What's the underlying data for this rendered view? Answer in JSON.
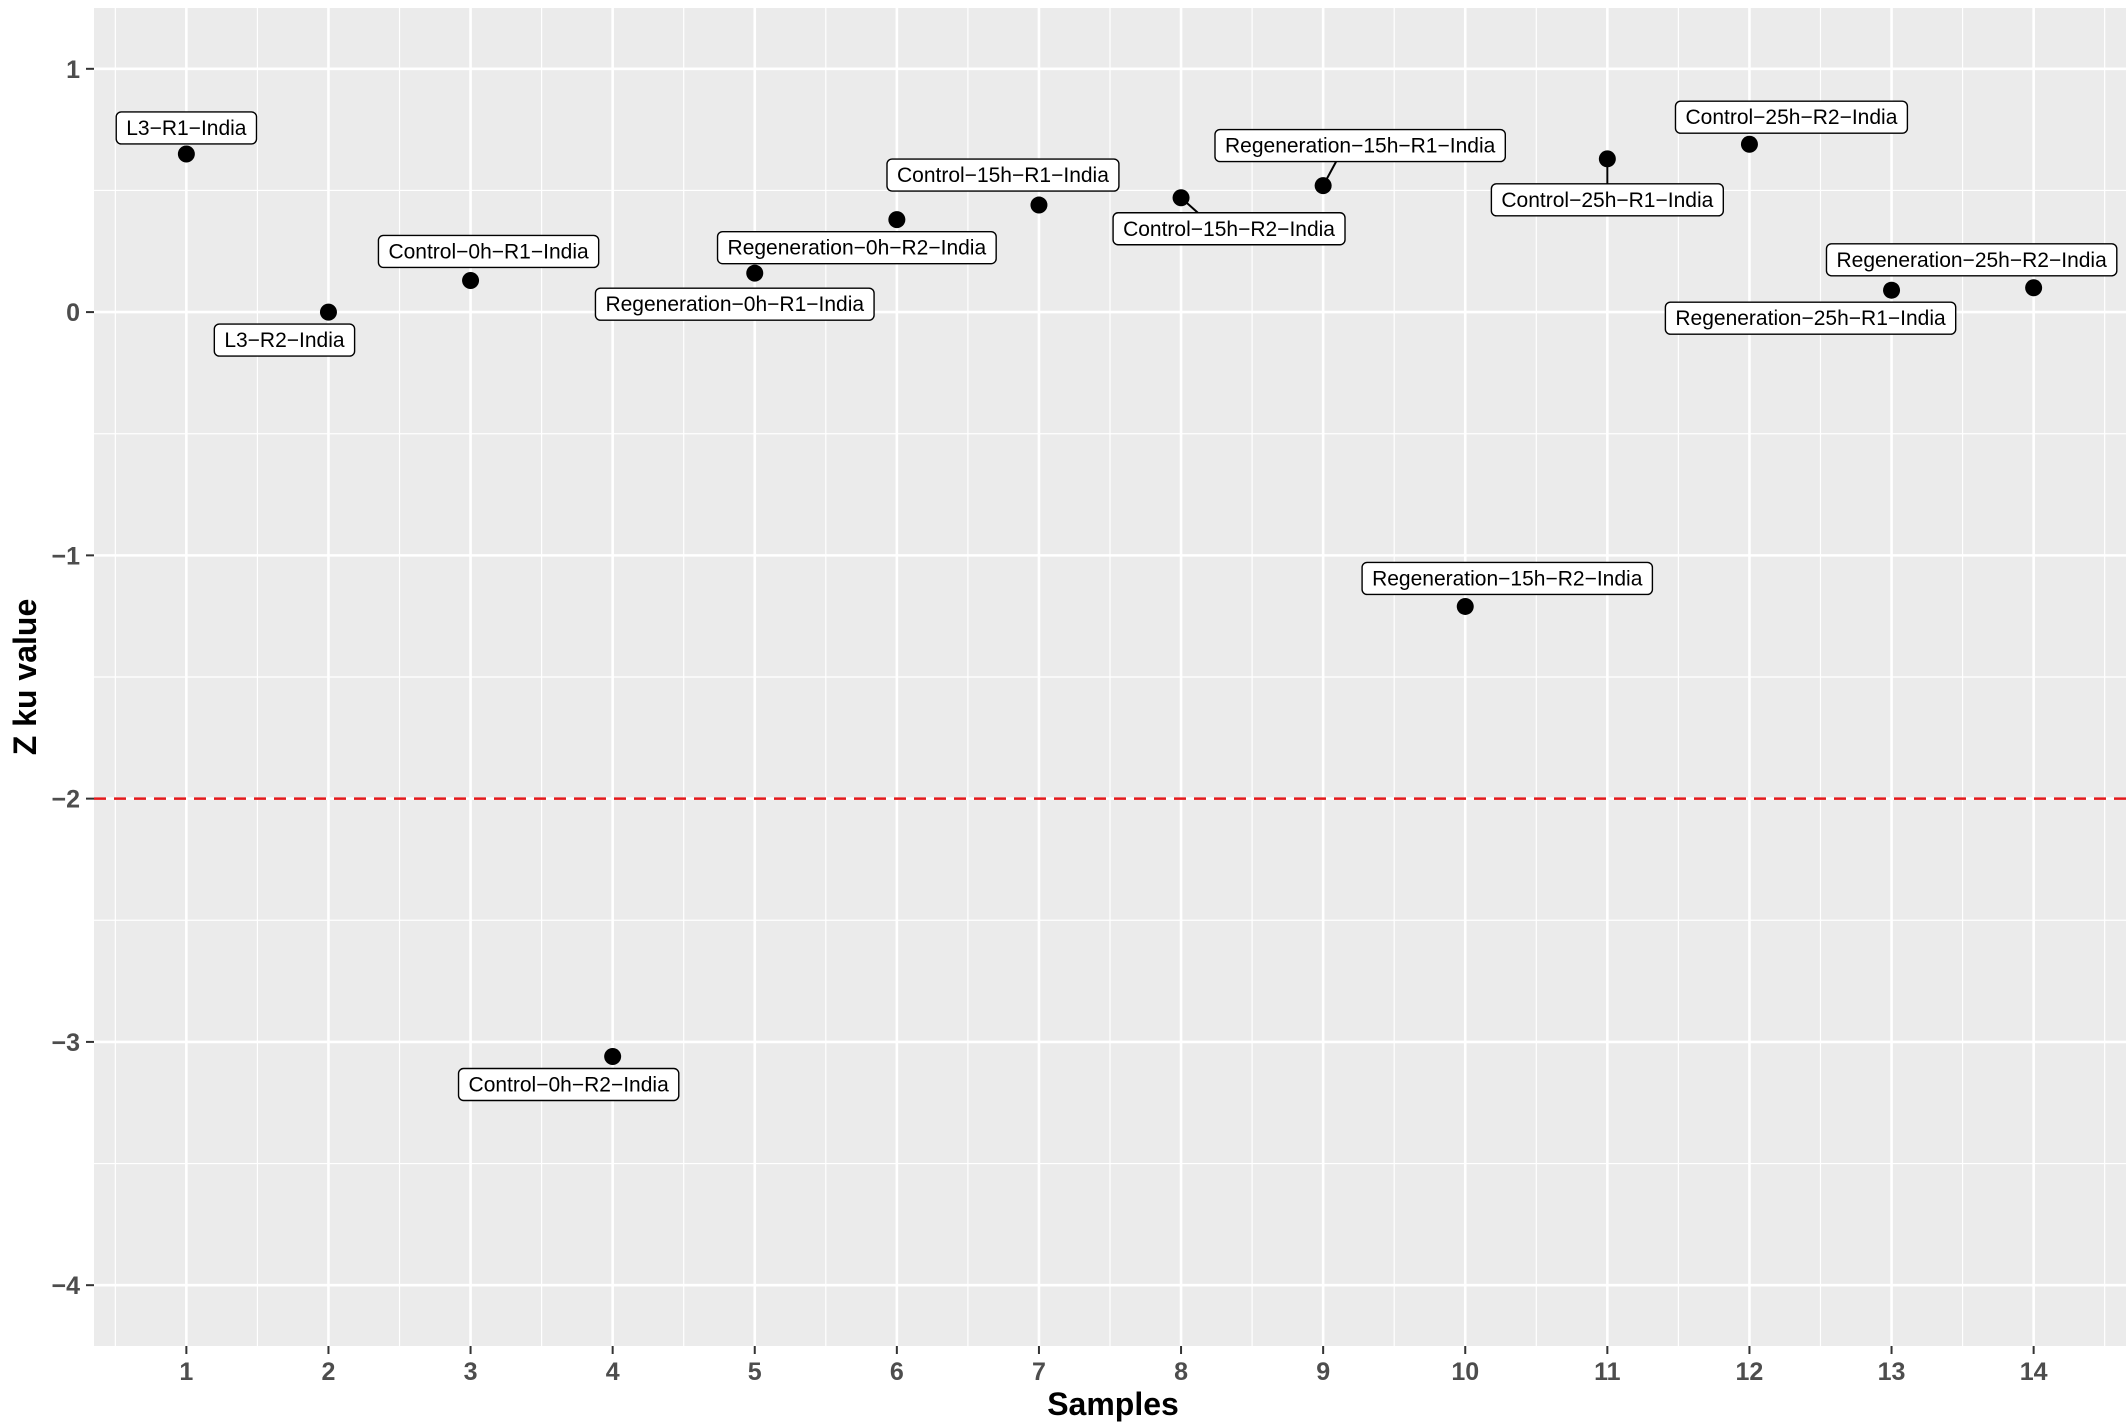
{
  "chart_data": {
    "type": "scatter",
    "title": "",
    "xlabel": "Samples",
    "ylabel": "Z ku value",
    "xlim": [
      0.35,
      14.65
    ],
    "ylim": [
      -4.25,
      1.25
    ],
    "x_ticks": [
      1,
      2,
      3,
      4,
      5,
      6,
      7,
      8,
      9,
      10,
      11,
      12,
      13,
      14
    ],
    "y_ticks": [
      -4,
      -3,
      -2,
      -1,
      0,
      1
    ],
    "x_tick_labels": [
      "1",
      "2",
      "3",
      "4",
      "5",
      "6",
      "7",
      "8",
      "9",
      "10",
      "11",
      "12",
      "13",
      "14"
    ],
    "y_tick_labels": [
      "−4",
      "−3",
      "−2",
      "−1",
      "0",
      "1"
    ],
    "grid": true,
    "reference_line": {
      "y": -2,
      "style": "dashed",
      "color": "#e41a1c"
    },
    "colors": {
      "panel": "#ebebeb",
      "grid": "#ffffff",
      "point": "#000000"
    },
    "points": [
      {
        "x": 1,
        "y": 0.65,
        "label": "L3−R1−India"
      },
      {
        "x": 2,
        "y": 0.0,
        "label": "L3−R2−India"
      },
      {
        "x": 3,
        "y": 0.13,
        "label": "Control−0h−R1−India"
      },
      {
        "x": 4,
        "y": -3.06,
        "label": "Control−0h−R2−India"
      },
      {
        "x": 5,
        "y": 0.16,
        "label": "Regeneration−0h−R1−India"
      },
      {
        "x": 6,
        "y": 0.38,
        "label": "Regeneration−0h−R2−India"
      },
      {
        "x": 7,
        "y": 0.44,
        "label": "Control−15h−R1−India"
      },
      {
        "x": 8,
        "y": 0.47,
        "label": "Control−15h−R2−India"
      },
      {
        "x": 9,
        "y": 0.52,
        "label": "Regeneration−15h−R1−India"
      },
      {
        "x": 10,
        "y": -1.21,
        "label": "Regeneration−15h−R2−India"
      },
      {
        "x": 11,
        "y": 0.63,
        "label": "Control−25h−R1−India"
      },
      {
        "x": 12,
        "y": 0.69,
        "label": "Control−25h−R2−India"
      },
      {
        "x": 13,
        "y": 0.09,
        "label": "Regeneration−25h−R1−India"
      },
      {
        "x": 14,
        "y": 0.1,
        "label": "Regeneration−25h−R2−India"
      }
    ]
  }
}
